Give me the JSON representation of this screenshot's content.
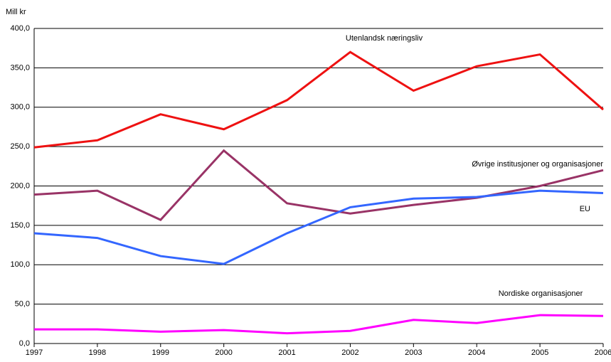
{
  "chart_data": {
    "type": "line",
    "y_label": "Mill kr",
    "categories": [
      "1997",
      "1998",
      "1999",
      "2000",
      "2001",
      "2002",
      "2003",
      "2004",
      "2005",
      "2006"
    ],
    "series": [
      {
        "name": "Utenlandsk næringsliv",
        "color": "#ee1111",
        "values": [
          249,
          258,
          291,
          272,
          309,
          370,
          321,
          352,
          367,
          297
        ]
      },
      {
        "name": "Øvrige institusjoner og organisasjoner",
        "color": "#993366",
        "values": [
          189,
          194,
          157,
          245,
          178,
          165,
          176,
          185,
          200,
          220
        ]
      },
      {
        "name": "EU",
        "color": "#3366ff",
        "values": [
          140,
          134,
          111,
          101,
          140,
          173,
          184,
          186,
          194,
          191
        ]
      },
      {
        "name": "Nordiske organisasjoner",
        "color": "#ff00ff",
        "values": [
          18,
          18,
          15,
          17,
          13,
          16,
          30,
          26,
          36,
          35
        ]
      }
    ],
    "ylim": [
      0,
      400
    ],
    "yticks": [
      {
        "value": 0,
        "label": "0,0"
      },
      {
        "value": 50,
        "label": "50,0"
      },
      {
        "value": 100,
        "label": "100,0"
      },
      {
        "value": 150,
        "label": "150,0"
      },
      {
        "value": 200,
        "label": "200,0"
      },
      {
        "value": 250,
        "label": "250,0"
      },
      {
        "value": 300,
        "label": "300,0"
      },
      {
        "value": 350,
        "label": "350,0"
      },
      {
        "value": 400,
        "label": "400,0"
      }
    ],
    "grid": true
  }
}
